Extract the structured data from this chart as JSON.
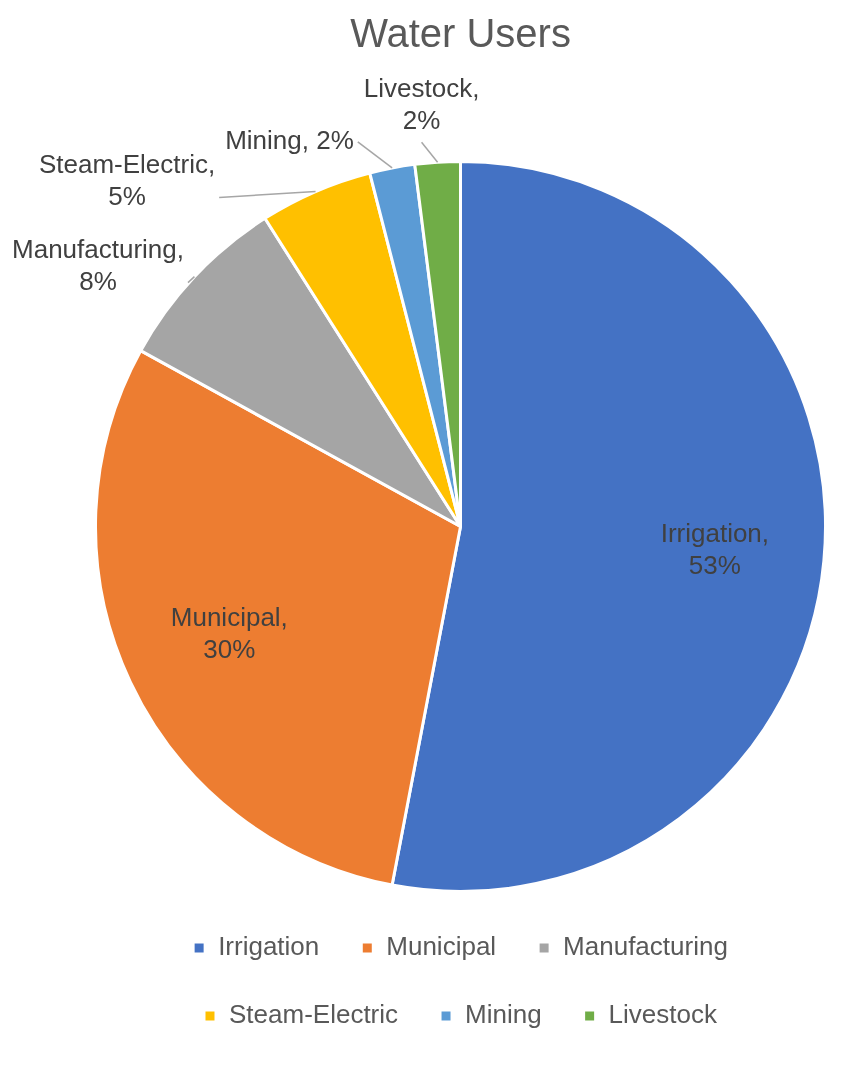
{
  "chart_data": {
    "type": "pie",
    "title": "Water Users",
    "categories": [
      "Irrigation",
      "Municipal",
      "Manufacturing",
      "Steam-Electric",
      "Mining",
      "Livestock"
    ],
    "values": [
      53,
      30,
      8,
      5,
      2,
      2
    ],
    "colors": [
      "#4472c4",
      "#ed7d31",
      "#a5a5a5",
      "#ffc000",
      "#5b9bd5",
      "#70ad47"
    ],
    "value_labels": [
      "Irrigation, 53%",
      "Municipal, 30%",
      "Manufacturing, 8%",
      "Steam-Electric, 5%",
      "Mining, 2%",
      "Livestock, 2%"
    ],
    "legend": "bottom"
  }
}
